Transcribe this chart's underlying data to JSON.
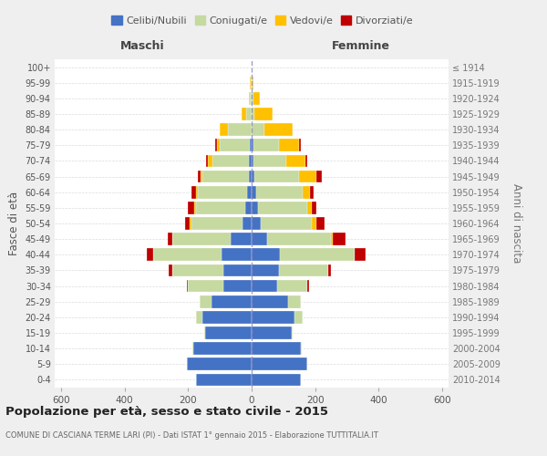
{
  "age_groups": [
    "0-4",
    "5-9",
    "10-14",
    "15-19",
    "20-24",
    "25-29",
    "30-34",
    "35-39",
    "40-44",
    "45-49",
    "50-54",
    "55-59",
    "60-64",
    "65-69",
    "70-74",
    "75-79",
    "80-84",
    "85-89",
    "90-94",
    "95-99",
    "100+"
  ],
  "birth_years": [
    "2010-2014",
    "2005-2009",
    "2000-2004",
    "1995-1999",
    "1990-1994",
    "1985-1989",
    "1980-1984",
    "1975-1979",
    "1970-1974",
    "1965-1969",
    "1960-1964",
    "1955-1959",
    "1950-1954",
    "1945-1949",
    "1940-1944",
    "1935-1939",
    "1930-1934",
    "1925-1929",
    "1920-1924",
    "1915-1919",
    "≤ 1914"
  ],
  "males": {
    "celibi": [
      175,
      205,
      185,
      145,
      155,
      125,
      90,
      90,
      95,
      65,
      30,
      20,
      15,
      10,
      8,
      5,
      0,
      0,
      0,
      0,
      0
    ],
    "coniugati": [
      0,
      0,
      2,
      5,
      20,
      40,
      110,
      160,
      215,
      185,
      160,
      155,
      155,
      145,
      115,
      95,
      75,
      18,
      5,
      3,
      1
    ],
    "vedovi": [
      0,
      0,
      0,
      0,
      0,
      0,
      0,
      0,
      0,
      0,
      5,
      5,
      5,
      5,
      15,
      10,
      25,
      15,
      5,
      2,
      0
    ],
    "divorziati": [
      0,
      0,
      0,
      0,
      0,
      0,
      5,
      10,
      20,
      15,
      15,
      20,
      15,
      8,
      5,
      5,
      0,
      0,
      0,
      0,
      0
    ]
  },
  "females": {
    "nubili": [
      155,
      175,
      155,
      125,
      135,
      115,
      80,
      85,
      90,
      50,
      30,
      20,
      15,
      10,
      5,
      5,
      0,
      0,
      0,
      0,
      0
    ],
    "coniugate": [
      0,
      0,
      2,
      5,
      25,
      40,
      95,
      155,
      235,
      200,
      160,
      155,
      145,
      140,
      105,
      80,
      40,
      10,
      5,
      2,
      0
    ],
    "vedove": [
      0,
      0,
      0,
      0,
      0,
      0,
      0,
      0,
      0,
      5,
      15,
      15,
      25,
      55,
      60,
      65,
      90,
      55,
      20,
      5,
      1
    ],
    "divorziate": [
      0,
      0,
      0,
      0,
      0,
      0,
      5,
      10,
      35,
      40,
      25,
      15,
      10,
      15,
      5,
      5,
      0,
      0,
      0,
      0,
      0
    ]
  },
  "colors": {
    "celibi": "#4472c4",
    "coniugati": "#c5d9a0",
    "vedovi": "#ffc000",
    "divorziati": "#c00000"
  },
  "xlim": 620,
  "title": "Popolazione per età, sesso e stato civile - 2015",
  "subtitle": "COMUNE DI CASCIANA TERME LARI (PI) - Dati ISTAT 1° gennaio 2015 - Elaborazione TUTTITALIA.IT",
  "ylabel_left": "Fasce di età",
  "ylabel_right": "Anni di nascita",
  "xlabel_left": "Maschi",
  "xlabel_right": "Femmine",
  "bg_color": "#efefef",
  "plot_bg": "#ffffff"
}
